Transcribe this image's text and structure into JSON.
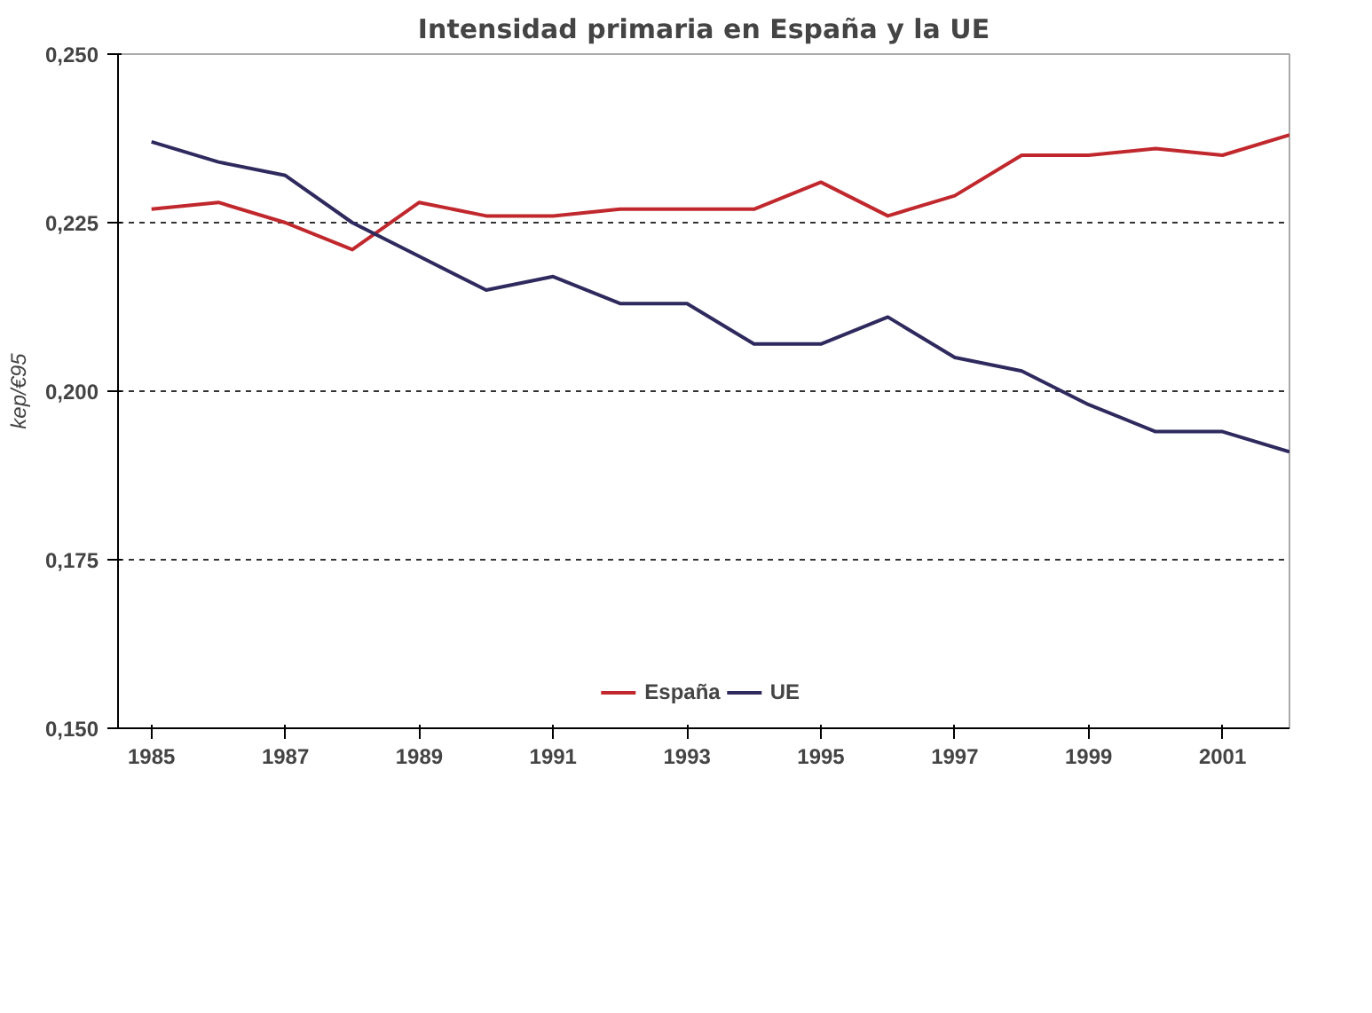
{
  "chart_data": {
    "type": "line",
    "title": "Intensidad primaria en España y la UE",
    "ylabel": "kep/€95",
    "x": [
      1985,
      1986,
      1987,
      1988,
      1989,
      1990,
      1991,
      1992,
      1993,
      1994,
      1995,
      1996,
      1997,
      1998,
      1999,
      2000,
      2001,
      2002
    ],
    "series": [
      {
        "name": "España",
        "color": "#c0282d",
        "values": [
          0.227,
          0.228,
          0.225,
          0.221,
          0.228,
          0.226,
          0.226,
          0.227,
          0.227,
          0.227,
          0.231,
          0.226,
          0.229,
          0.235,
          0.235,
          0.236,
          0.235,
          0.238
        ]
      },
      {
        "name": "UE",
        "color": "#2e2a5e",
        "values": [
          0.237,
          0.234,
          0.232,
          0.225,
          0.22,
          0.215,
          0.217,
          0.213,
          0.213,
          0.207,
          0.207,
          0.211,
          0.205,
          0.203,
          0.198,
          0.194,
          0.194,
          0.191
        ]
      }
    ],
    "xlim": [
      1984.5,
      2002
    ],
    "xticks": [
      1985,
      1987,
      1989,
      1991,
      1993,
      1995,
      1997,
      1999,
      2001
    ],
    "ylim": [
      0.15,
      0.25
    ],
    "yticks": [
      {
        "value": 0.15,
        "label": "0,150"
      },
      {
        "value": 0.175,
        "label": "0,175"
      },
      {
        "value": 0.2,
        "label": "0,200"
      },
      {
        "value": 0.225,
        "label": "0,225"
      },
      {
        "value": 0.25,
        "label": "0,250"
      }
    ],
    "grid": "y",
    "legend": "bottom",
    "line_style": "solid",
    "marker": "none"
  }
}
